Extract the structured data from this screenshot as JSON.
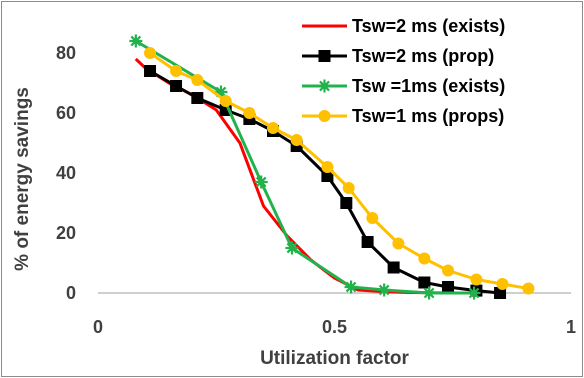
{
  "chart_data": {
    "type": "line",
    "title": "",
    "xlabel": "Utilization factor",
    "ylabel": "% of energy savings",
    "xlim": [
      0,
      1
    ],
    "ylim": [
      0,
      90
    ],
    "x_ticks": [
      "0",
      "0.5",
      "1"
    ],
    "y_ticks": [
      "0",
      "20",
      "40",
      "60",
      "80"
    ],
    "grid": false,
    "legend_position": "top-right",
    "series": [
      {
        "name": "Tsw=2 ms (exists)",
        "color": "#ff0000",
        "marker": "none",
        "x": [
          0.08,
          0.1,
          0.15,
          0.2,
          0.25,
          0.3,
          0.35,
          0.4,
          0.45,
          0.5,
          0.55,
          0.6,
          0.65,
          0.7,
          0.75,
          0.8
        ],
        "y": [
          78,
          75,
          70,
          66,
          61,
          50,
          29,
          19,
          11,
          5,
          1,
          0.5,
          0.2,
          0.1,
          0,
          0
        ]
      },
      {
        "name": "Tsw=2 ms (prop)",
        "color": "#000000",
        "marker": "square",
        "x": [
          0.11,
          0.165,
          0.21,
          0.27,
          0.32,
          0.37,
          0.42,
          0.485,
          0.525,
          0.57,
          0.625,
          0.69,
          0.74,
          0.8,
          0.85
        ],
        "y": [
          74,
          69,
          65,
          61,
          58,
          54,
          49,
          39,
          30,
          17,
          8.5,
          3.5,
          2,
          0.8,
          0
        ]
      },
      {
        "name": "Tsw =1ms (exists)",
        "color": "#22b24c",
        "marker": "star",
        "x": [
          0.08,
          0.26,
          0.345,
          0.41,
          0.535,
          0.605,
          0.7,
          0.795
        ],
        "y": [
          84,
          67,
          37,
          15,
          2,
          1,
          0,
          0
        ]
      },
      {
        "name": "Tsw=1 ms (props)",
        "color": "#ffc000",
        "marker": "circle",
        "x": [
          0.11,
          0.165,
          0.21,
          0.27,
          0.32,
          0.37,
          0.42,
          0.485,
          0.53,
          0.58,
          0.635,
          0.69,
          0.74,
          0.8,
          0.855,
          0.91
        ],
        "y": [
          80,
          74,
          71,
          64,
          60,
          55,
          51,
          42,
          35,
          25,
          16.5,
          11.5,
          7.5,
          4.5,
          3,
          1.5
        ]
      }
    ]
  }
}
